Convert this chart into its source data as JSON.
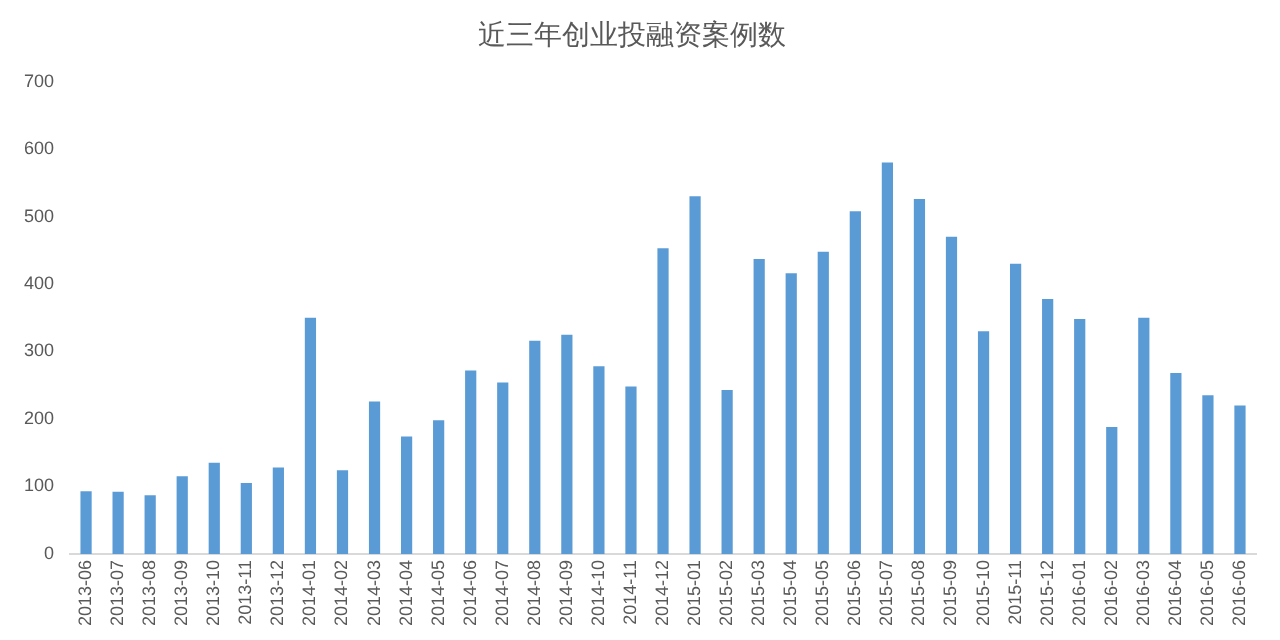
{
  "chart_data": {
    "type": "bar",
    "title": "近三年创业投融资案例数",
    "categories": [
      "2013-06",
      "2013-07",
      "2013-08",
      "2013-09",
      "2013-10",
      "2013-11",
      "2013-12",
      "2014-01",
      "2014-02",
      "2014-03",
      "2014-04",
      "2014-05",
      "2014-06",
      "2014-07",
      "2014-08",
      "2014-09",
      "2014-10",
      "2014-11",
      "2014-12",
      "2015-01",
      "2015-02",
      "2015-03",
      "2015-04",
      "2015-05",
      "2015-06",
      "2015-07",
      "2015-08",
      "2015-09",
      "2015-10",
      "2015-11",
      "2015-12",
      "2016-01",
      "2016-02",
      "2016-03",
      "2016-04",
      "2016-05",
      "2016-06"
    ],
    "values": [
      93,
      92,
      87,
      115,
      135,
      105,
      128,
      350,
      124,
      226,
      174,
      198,
      272,
      254,
      316,
      325,
      278,
      248,
      453,
      530,
      243,
      437,
      416,
      448,
      508,
      580,
      526,
      470,
      330,
      430,
      378,
      348,
      188,
      350,
      268,
      235,
      220
    ],
    "color": "#5b9bd5",
    "ylim": [
      0,
      700
    ],
    "yticks": [
      0,
      100,
      200,
      300,
      400,
      500,
      600,
      700
    ],
    "grid": false,
    "legend": false
  }
}
